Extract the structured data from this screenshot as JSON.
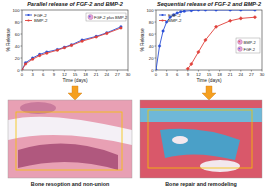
{
  "chart_data": [
    {
      "type": "line",
      "title": "Parallel release of FGF-2 and BMP-2",
      "x_label": "Time (days)",
      "y_label": "% Release",
      "x": [
        0,
        1,
        3,
        5,
        7,
        10,
        12,
        14,
        17,
        21,
        24,
        28
      ],
      "series": [
        {
          "name": "FGF-2",
          "color": "#2a4fd6",
          "marker": "circle",
          "values": [
            0,
            12,
            20,
            26,
            30,
            34,
            38,
            42,
            50,
            56,
            62,
            72
          ]
        },
        {
          "name": "BMP-2",
          "color": "#e0403a",
          "marker": "circle",
          "values": [
            0,
            10,
            18,
            24,
            28,
            33,
            37,
            41,
            48,
            55,
            61,
            70
          ]
        }
      ],
      "annotations": [
        "FGF-2 plus BMP-2"
      ],
      "xlim": [
        0,
        30
      ],
      "xticks": [
        0,
        3,
        6,
        9,
        12,
        15,
        18,
        21,
        24,
        27,
        30
      ],
      "ylim": [
        0,
        100
      ],
      "yticks": [
        0,
        20,
        40,
        60,
        80,
        100
      ],
      "legend": "top-left",
      "grid": false
    },
    {
      "type": "line",
      "title": "Sequential release of FGF-2 and BMP-2",
      "x_label": "Time (days)",
      "y_label": "% Release",
      "series": [
        {
          "name": "FGF-2",
          "color": "#2a4fd6",
          "marker": "circle",
          "x": [
            0,
            1,
            2,
            3,
            4,
            5,
            6,
            7,
            8,
            10,
            12,
            14,
            17,
            21,
            24,
            28
          ],
          "values": [
            0,
            40,
            65,
            80,
            88,
            92,
            95,
            97,
            98,
            99,
            100,
            100,
            100,
            100,
            100,
            100
          ]
        },
        {
          "name": "BMP-2",
          "color": "#e0403a",
          "marker": "diamond",
          "x": [
            9,
            10,
            12,
            14,
            17,
            21,
            24,
            28
          ],
          "values": [
            2,
            10,
            30,
            50,
            72,
            82,
            86,
            88
          ]
        }
      ],
      "annotations": [
        "BMP-2",
        "FGF-2"
      ],
      "xlim": [
        0,
        30
      ],
      "xticks": [
        0,
        3,
        6,
        9,
        12,
        15,
        18,
        21,
        24,
        27,
        30
      ],
      "ylim": [
        0,
        100
      ],
      "yticks": [
        0,
        20,
        40,
        60,
        80,
        100
      ],
      "legend": "top-left",
      "grid": false
    }
  ],
  "panels": [
    {
      "caption": "Bone resoption and non-union"
    },
    {
      "caption": "Bone repair and remodeling"
    }
  ]
}
